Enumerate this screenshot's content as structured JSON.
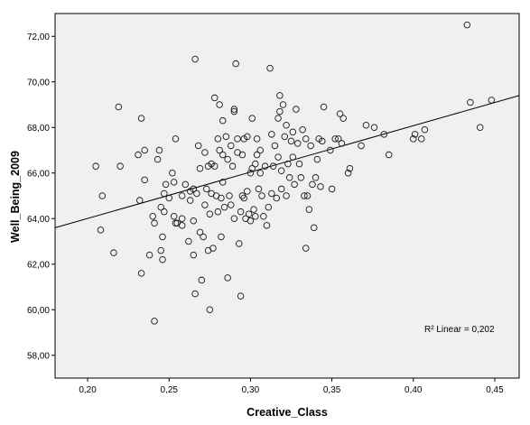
{
  "chart_data": {
    "type": "scatter",
    "xlabel": "Creative_Class",
    "ylabel": "Well_Being_2009",
    "xlim": [
      0.18,
      0.465
    ],
    "ylim": [
      57,
      73
    ],
    "x_ticks": [
      0.2,
      0.25,
      0.3,
      0.35,
      0.4,
      0.45
    ],
    "x_tick_labels": [
      "0,20",
      "0,25",
      "0,30",
      "0,35",
      "0,40",
      "0,45"
    ],
    "y_ticks": [
      58,
      60,
      62,
      64,
      66,
      68,
      70,
      72
    ],
    "y_tick_labels": [
      "58,00",
      "60,00",
      "62,00",
      "64,00",
      "66,00",
      "68,00",
      "70,00",
      "72,00"
    ],
    "grid": false,
    "annotation": {
      "r2_label": "R² Linear = 0,202"
    },
    "fit_line": {
      "x": [
        0.18,
        0.465
      ],
      "y": [
        63.6,
        69.4
      ]
    },
    "colors": {
      "background": "#ffffff",
      "plot_background": "#f0f0f0",
      "marker": "#1a1a1a",
      "line": "#000000"
    },
    "points": [
      [
        0.205,
        66.3
      ],
      [
        0.208,
        63.5
      ],
      [
        0.209,
        65.0
      ],
      [
        0.216,
        62.5
      ],
      [
        0.219,
        68.9
      ],
      [
        0.22,
        66.3
      ],
      [
        0.231,
        66.8
      ],
      [
        0.232,
        64.8
      ],
      [
        0.233,
        68.4
      ],
      [
        0.233,
        61.6
      ],
      [
        0.235,
        67.0
      ],
      [
        0.235,
        65.7
      ],
      [
        0.238,
        62.4
      ],
      [
        0.24,
        64.1
      ],
      [
        0.241,
        63.8
      ],
      [
        0.241,
        59.5
      ],
      [
        0.243,
        66.6
      ],
      [
        0.244,
        67.0
      ],
      [
        0.245,
        64.5
      ],
      [
        0.245,
        62.6
      ],
      [
        0.246,
        63.2
      ],
      [
        0.246,
        62.2
      ],
      [
        0.247,
        65.1
      ],
      [
        0.247,
        64.3
      ],
      [
        0.248,
        65.5
      ],
      [
        0.25,
        64.9
      ],
      [
        0.252,
        66.0
      ],
      [
        0.253,
        65.6
      ],
      [
        0.253,
        64.1
      ],
      [
        0.254,
        67.5
      ],
      [
        0.254,
        63.8
      ],
      [
        0.255,
        63.8
      ],
      [
        0.258,
        65.0
      ],
      [
        0.258,
        64.0
      ],
      [
        0.258,
        63.7
      ],
      [
        0.26,
        65.5
      ],
      [
        0.262,
        63.0
      ],
      [
        0.263,
        65.2
      ],
      [
        0.263,
        64.8
      ],
      [
        0.265,
        65.3
      ],
      [
        0.265,
        62.4
      ],
      [
        0.265,
        63.9
      ],
      [
        0.266,
        71.0
      ],
      [
        0.266,
        60.7
      ],
      [
        0.267,
        65.1
      ],
      [
        0.268,
        67.2
      ],
      [
        0.269,
        63.4
      ],
      [
        0.269,
        66.2
      ],
      [
        0.27,
        61.3
      ],
      [
        0.271,
        63.2
      ],
      [
        0.272,
        66.9
      ],
      [
        0.272,
        64.6
      ],
      [
        0.273,
        65.3
      ],
      [
        0.274,
        66.3
      ],
      [
        0.274,
        62.6
      ],
      [
        0.275,
        64.2
      ],
      [
        0.275,
        60.0
      ],
      [
        0.276,
        66.4
      ],
      [
        0.276,
        65.1
      ],
      [
        0.277,
        62.7
      ],
      [
        0.278,
        69.3
      ],
      [
        0.278,
        66.3
      ],
      [
        0.279,
        65.0
      ],
      [
        0.28,
        67.5
      ],
      [
        0.28,
        64.3
      ],
      [
        0.281,
        69.0
      ],
      [
        0.281,
        67.0
      ],
      [
        0.282,
        64.9
      ],
      [
        0.282,
        63.2
      ],
      [
        0.283,
        68.3
      ],
      [
        0.283,
        66.8
      ],
      [
        0.283,
        65.6
      ],
      [
        0.284,
        64.5
      ],
      [
        0.285,
        67.6
      ],
      [
        0.286,
        66.6
      ],
      [
        0.286,
        61.4
      ],
      [
        0.287,
        65.0
      ],
      [
        0.288,
        67.2
      ],
      [
        0.288,
        64.6
      ],
      [
        0.289,
        66.3
      ],
      [
        0.29,
        68.7
      ],
      [
        0.29,
        68.8
      ],
      [
        0.29,
        64.0
      ],
      [
        0.291,
        70.8
      ],
      [
        0.292,
        67.5
      ],
      [
        0.292,
        66.9
      ],
      [
        0.293,
        62.9
      ],
      [
        0.294,
        64.3
      ],
      [
        0.294,
        60.6
      ],
      [
        0.295,
        66.8
      ],
      [
        0.295,
        65.0
      ],
      [
        0.296,
        67.5
      ],
      [
        0.296,
        64.9
      ],
      [
        0.297,
        64.0
      ],
      [
        0.298,
        67.6
      ],
      [
        0.298,
        65.2
      ],
      [
        0.299,
        64.2
      ],
      [
        0.3,
        66.0
      ],
      [
        0.3,
        63.9
      ],
      [
        0.301,
        68.4
      ],
      [
        0.301,
        66.2
      ],
      [
        0.302,
        64.4
      ],
      [
        0.303,
        66.4
      ],
      [
        0.303,
        64.1
      ],
      [
        0.304,
        67.5
      ],
      [
        0.304,
        66.8
      ],
      [
        0.305,
        65.3
      ],
      [
        0.306,
        67.0
      ],
      [
        0.306,
        66.0
      ],
      [
        0.307,
        65.0
      ],
      [
        0.308,
        64.1
      ],
      [
        0.309,
        66.3
      ],
      [
        0.31,
        63.7
      ],
      [
        0.311,
        64.5
      ],
      [
        0.312,
        70.6
      ],
      [
        0.313,
        67.7
      ],
      [
        0.313,
        65.1
      ],
      [
        0.314,
        66.3
      ],
      [
        0.315,
        67.2
      ],
      [
        0.316,
        64.9
      ],
      [
        0.317,
        68.4
      ],
      [
        0.317,
        66.7
      ],
      [
        0.318,
        69.4
      ],
      [
        0.318,
        68.7
      ],
      [
        0.319,
        66.1
      ],
      [
        0.319,
        65.3
      ],
      [
        0.32,
        69.0
      ],
      [
        0.321,
        67.6
      ],
      [
        0.322,
        68.1
      ],
      [
        0.322,
        65.0
      ],
      [
        0.323,
        66.4
      ],
      [
        0.324,
        65.8
      ],
      [
        0.325,
        67.4
      ],
      [
        0.326,
        67.8
      ],
      [
        0.326,
        66.7
      ],
      [
        0.327,
        65.5
      ],
      [
        0.328,
        68.8
      ],
      [
        0.329,
        67.3
      ],
      [
        0.33,
        66.4
      ],
      [
        0.331,
        65.8
      ],
      [
        0.332,
        67.9
      ],
      [
        0.333,
        65.0
      ],
      [
        0.334,
        62.7
      ],
      [
        0.334,
        67.5
      ],
      [
        0.335,
        65.0
      ],
      [
        0.336,
        64.4
      ],
      [
        0.337,
        67.2
      ],
      [
        0.338,
        65.5
      ],
      [
        0.339,
        63.6
      ],
      [
        0.34,
        65.8
      ],
      [
        0.341,
        66.6
      ],
      [
        0.342,
        67.5
      ],
      [
        0.343,
        65.4
      ],
      [
        0.344,
        67.4
      ],
      [
        0.345,
        68.9
      ],
      [
        0.349,
        67.0
      ],
      [
        0.35,
        65.3
      ],
      [
        0.352,
        67.5
      ],
      [
        0.354,
        67.5
      ],
      [
        0.355,
        68.6
      ],
      [
        0.356,
        67.3
      ],
      [
        0.357,
        68.4
      ],
      [
        0.36,
        66.0
      ],
      [
        0.361,
        66.2
      ],
      [
        0.368,
        67.2
      ],
      [
        0.371,
        68.1
      ],
      [
        0.376,
        68.0
      ],
      [
        0.382,
        67.7
      ],
      [
        0.385,
        66.8
      ],
      [
        0.4,
        67.5
      ],
      [
        0.401,
        67.7
      ],
      [
        0.405,
        67.5
      ],
      [
        0.407,
        67.9
      ],
      [
        0.433,
        72.5
      ],
      [
        0.435,
        69.1
      ],
      [
        0.441,
        68.0
      ],
      [
        0.448,
        69.2
      ]
    ]
  }
}
